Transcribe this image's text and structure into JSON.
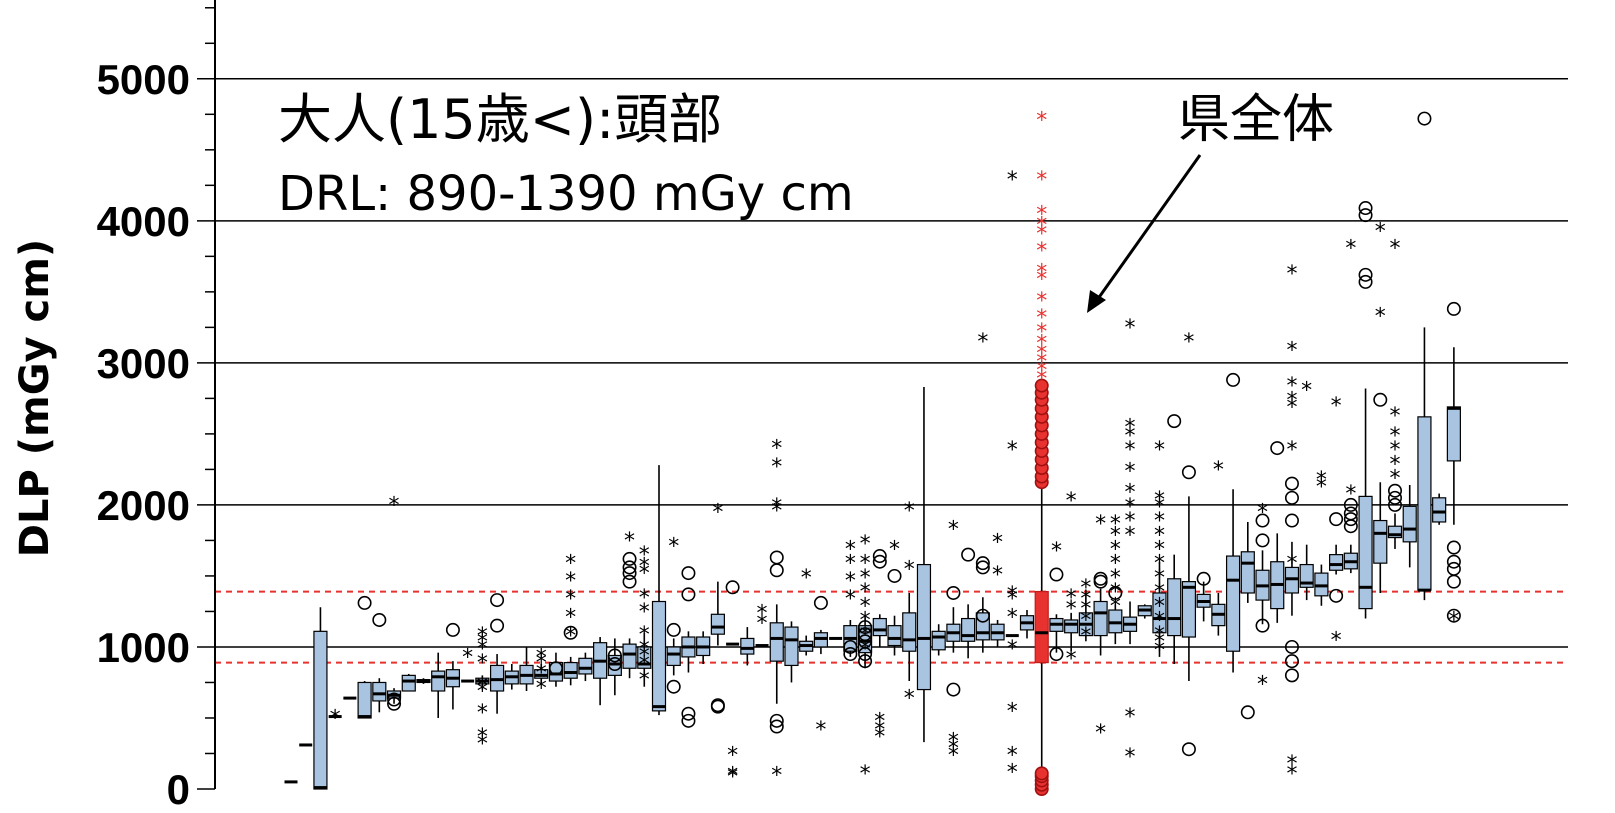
{
  "chart_data": {
    "type": "boxplot",
    "title": "大人(15歳<):頭部",
    "subtitle": "DRL: 890-1390 mGy cm",
    "ylabel": "DLP (mGy cm)",
    "xlabel": "",
    "ylim": [
      0,
      5500
    ],
    "yticks": [
      0,
      1000,
      2000,
      3000,
      4000,
      5000
    ],
    "ytick_labels": [
      "0",
      "1000",
      "2000",
      "3000",
      "4000",
      "5000"
    ],
    "grid": "horizontal major",
    "drl_lines": [
      890,
      1390
    ],
    "annotation": "県全体",
    "colors": {
      "box_fill": "#a9c4e0",
      "prefecture_fill": "#e8322f",
      "drl_line": "#e8322f",
      "grid": "#000000"
    },
    "boxes": [
      {
        "q1": 50,
        "median": 50,
        "q3": 50,
        "lo": 50,
        "hi": 50
      },
      {
        "q1": 310,
        "median": 310,
        "q3": 310,
        "lo": 310,
        "hi": 310
      },
      {
        "q1": 0,
        "median": 10,
        "q3": 1110,
        "lo": 0,
        "hi": 1280
      },
      {
        "q1": 510,
        "median": 510,
        "q3": 510,
        "lo": 510,
        "hi": 510,
        "stars": [
          510
        ]
      },
      {
        "q1": 640,
        "median": 640,
        "q3": 640,
        "lo": 640,
        "hi": 640
      },
      {
        "q1": 500,
        "median": 510,
        "q3": 750,
        "lo": 500,
        "hi": 760,
        "circles": [
          1310
        ]
      },
      {
        "q1": 620,
        "median": 670,
        "q3": 750,
        "lo": 540,
        "hi": 780,
        "circles": [
          1190
        ]
      },
      {
        "q1": 640,
        "median": 660,
        "q3": 690,
        "lo": 600,
        "hi": 710,
        "circles": [
          600,
          630
        ],
        "stars": [
          2010
        ]
      },
      {
        "q1": 690,
        "median": 760,
        "q3": 800,
        "lo": 690,
        "hi": 810
      },
      {
        "q1": 750,
        "median": 760,
        "q3": 770,
        "lo": 740,
        "hi": 780
      },
      {
        "q1": 690,
        "median": 790,
        "q3": 830,
        "lo": 500,
        "hi": 960
      },
      {
        "q1": 720,
        "median": 780,
        "q3": 840,
        "lo": 560,
        "hi": 900,
        "circles": [
          1120
        ]
      },
      {
        "q1": 760,
        "median": 760,
        "q3": 760,
        "lo": 760,
        "hi": 760,
        "stars": [
          940
        ]
      },
      {
        "q1": 740,
        "median": 760,
        "q3": 780,
        "lo": 700,
        "hi": 800,
        "stars": [
          330,
          380,
          550,
          700,
          740,
          900,
          1000,
          1050,
          1090
        ]
      },
      {
        "q1": 690,
        "median": 770,
        "q3": 870,
        "lo": 530,
        "hi": 950,
        "circles": [
          1150,
          1330
        ]
      },
      {
        "q1": 740,
        "median": 790,
        "q3": 830,
        "lo": 700,
        "hi": 880
      },
      {
        "q1": 740,
        "median": 800,
        "q3": 870,
        "lo": 690,
        "hi": 1000
      },
      {
        "q1": 780,
        "median": 800,
        "q3": 840,
        "lo": 740,
        "hi": 880,
        "stars": [
          720,
          830,
          900,
          940
        ]
      },
      {
        "q1": 760,
        "median": 810,
        "q3": 890,
        "lo": 720,
        "hi": 960,
        "circles": [
          850
        ]
      },
      {
        "q1": 780,
        "median": 820,
        "q3": 890,
        "lo": 730,
        "hi": 930,
        "stars": [
          1090,
          1220,
          1350,
          1480,
          1600
        ],
        "circles": [
          1100
        ]
      },
      {
        "q1": 810,
        "median": 850,
        "q3": 920,
        "lo": 760,
        "hi": 960
      },
      {
        "q1": 780,
        "median": 900,
        "q3": 1030,
        "lo": 590,
        "hi": 1070
      },
      {
        "q1": 800,
        "median": 880,
        "q3": 940,
        "lo": 660,
        "hi": 1060,
        "circles": [
          880,
          940
        ]
      },
      {
        "q1": 850,
        "median": 950,
        "q3": 1020,
        "lo": 780,
        "hi": 1060,
        "circles": [
          1460,
          1520,
          1560,
          1620
        ],
        "stars": [
          1760
        ]
      },
      {
        "q1": 850,
        "median": 880,
        "q3": 1000,
        "lo": 720,
        "hi": 1100,
        "stars": [
          780,
          890,
          950,
          1000,
          1100,
          1260,
          1360,
          1530,
          1580,
          1660
        ]
      },
      {
        "q1": 550,
        "median": 580,
        "q3": 1320,
        "lo": 520,
        "hi": 2280
      },
      {
        "q1": 870,
        "median": 950,
        "q3": 1000,
        "lo": 800,
        "hi": 1060,
        "circles": [
          720,
          1120
        ],
        "stars": [
          1720
        ]
      },
      {
        "q1": 930,
        "median": 1000,
        "q3": 1070,
        "lo": 820,
        "hi": 1110,
        "circles": [
          480,
          530,
          1370,
          1520
        ]
      },
      {
        "q1": 940,
        "median": 1000,
        "q3": 1070,
        "lo": 880,
        "hi": 1110
      },
      {
        "q1": 1090,
        "median": 1140,
        "q3": 1230,
        "lo": 1010,
        "hi": 1460,
        "stars": [
          1960
        ],
        "circles": [
          580,
          590
        ]
      },
      {
        "q1": 1020,
        "median": 1020,
        "q3": 1020,
        "lo": 1020,
        "hi": 1020,
        "stars": [
          100,
          110,
          250
        ],
        "circles": [
          1420
        ]
      },
      {
        "q1": 950,
        "median": 990,
        "q3": 1060,
        "lo": 870,
        "hi": 1140
      },
      {
        "q1": 1010,
        "median": 1010,
        "q3": 1010,
        "lo": 1010,
        "hi": 1010,
        "stars": [
          1180,
          1250
        ]
      },
      {
        "q1": 900,
        "median": 1060,
        "q3": 1170,
        "lo": 600,
        "hi": 1300,
        "circles": [
          440,
          480,
          1540,
          1630
        ],
        "stars": [
          110,
          1970,
          2000,
          2280,
          2410
        ]
      },
      {
        "q1": 870,
        "median": 1050,
        "q3": 1140,
        "lo": 750,
        "hi": 1180
      },
      {
        "q1": 970,
        "median": 1010,
        "q3": 1040,
        "lo": 940,
        "hi": 1080,
        "stars": [
          1500
        ]
      },
      {
        "q1": 1000,
        "median": 1060,
        "q3": 1100,
        "lo": 950,
        "hi": 1120,
        "circles": [
          1310
        ],
        "stars": [
          430
        ]
      },
      {
        "q1": 1060,
        "median": 1060,
        "q3": 1060,
        "lo": 1060,
        "hi": 1060
      },
      {
        "q1": 970,
        "median": 1060,
        "q3": 1150,
        "lo": 930,
        "hi": 1190,
        "circles": [
          950,
          1000
        ],
        "stars": [
          1350,
          1480,
          1600,
          1700
        ]
      },
      {
        "q1": 960,
        "median": 1040,
        "q3": 1150,
        "lo": 850,
        "hi": 1210,
        "circles": [
          900,
          950,
          1040,
          1090,
          1140
        ],
        "stars": [
          120,
          1000,
          1100,
          1200,
          1300,
          1400,
          1500,
          1600,
          1740
        ]
      },
      {
        "q1": 1080,
        "median": 1120,
        "q3": 1200,
        "lo": 1000,
        "hi": 1230,
        "circles": [
          1600,
          1640
        ],
        "stars": [
          380,
          430,
          490
        ]
      },
      {
        "q1": 1010,
        "median": 1060,
        "q3": 1150,
        "lo": 940,
        "hi": 1220,
        "circles": [
          1500
        ],
        "stars": [
          1700
        ]
      },
      {
        "q1": 970,
        "median": 1050,
        "q3": 1240,
        "lo": 760,
        "hi": 1380,
        "stars": [
          650,
          1560,
          1970
        ]
      },
      {
        "q1": 700,
        "median": 1060,
        "q3": 1580,
        "lo": 330,
        "hi": 2830
      },
      {
        "q1": 980,
        "median": 1070,
        "q3": 1110,
        "lo": 940,
        "hi": 1160
      },
      {
        "q1": 1040,
        "median": 1100,
        "q3": 1160,
        "lo": 960,
        "hi": 1280,
        "circles": [
          700,
          1380
        ],
        "stars": [
          250,
          300,
          350,
          1840
        ]
      },
      {
        "q1": 1040,
        "median": 1080,
        "q3": 1200,
        "lo": 920,
        "hi": 1300,
        "circles": [
          1650
        ]
      },
      {
        "q1": 1050,
        "median": 1100,
        "q3": 1240,
        "lo": 960,
        "hi": 1350,
        "circles": [
          1220,
          1560,
          1590
        ],
        "stars": [
          3160
        ]
      },
      {
        "q1": 1050,
        "median": 1100,
        "q3": 1160,
        "lo": 1000,
        "hi": 1190,
        "stars": [
          1520,
          1750
        ]
      },
      {
        "q1": 1080,
        "median": 1080,
        "q3": 1080,
        "lo": 1080,
        "hi": 1080,
        "stars": [
          130,
          250,
          560,
          1000,
          1220,
          1350,
          1380,
          2400,
          4300
        ]
      },
      {
        "q1": 1120,
        "median": 1170,
        "q3": 1220,
        "lo": 1060,
        "hi": 1260
      },
      {
        "q1": 890,
        "median": 1100,
        "q3": 1390,
        "lo": 0,
        "hi": 2140,
        "circles": [
          0,
          30,
          60,
          90,
          110,
          2160,
          2200,
          2260,
          2320,
          2380,
          2440,
          2500,
          2560,
          2620,
          2680,
          2740,
          2790,
          2840
        ],
        "stars": [
          2900,
          2960,
          3020,
          3080,
          3150,
          3230,
          3330,
          3450,
          3600,
          3650,
          3800,
          3920,
          3980,
          4060,
          4300,
          4720
        ],
        "highlight": true
      },
      {
        "q1": 1110,
        "median": 1160,
        "q3": 1200,
        "lo": 960,
        "hi": 1230,
        "circles": [
          950,
          1510
        ],
        "stars": [
          1690
        ]
      },
      {
        "q1": 1100,
        "median": 1160,
        "q3": 1190,
        "lo": 970,
        "hi": 1240,
        "stars": [
          930,
          1280,
          1360,
          2040
        ]
      },
      {
        "q1": 1080,
        "median": 1160,
        "q3": 1240,
        "lo": 1040,
        "hi": 1400,
        "stars": [
          1090,
          1200,
          1280,
          1350,
          1430
        ]
      },
      {
        "q1": 1080,
        "median": 1240,
        "q3": 1320,
        "lo": 940,
        "hi": 1410,
        "circles": [
          1460,
          1480
        ],
        "stars": [
          1880,
          410
        ]
      },
      {
        "q1": 1100,
        "median": 1170,
        "q3": 1260,
        "lo": 1020,
        "hi": 1300,
        "circles": [
          1380
        ],
        "stars": [
          1300,
          1400,
          1500,
          1600,
          1700,
          1800,
          1880
        ]
      },
      {
        "q1": 1110,
        "median": 1160,
        "q3": 1210,
        "lo": 1020,
        "hi": 1320,
        "stars": [
          240,
          520,
          1800,
          1900,
          2000,
          2100,
          2250,
          2400,
          2500,
          2560,
          3260
        ]
      },
      {
        "q1": 1220,
        "median": 1260,
        "q3": 1290,
        "lo": 1200,
        "hi": 1300
      },
      {
        "q1": 1100,
        "median": 1200,
        "q3": 1380,
        "lo": 930,
        "hi": 1600,
        "stars": [
          990,
          1050,
          1100,
          1200,
          1300,
          1400,
          1500,
          1600,
          1700,
          1800,
          1900,
          2000,
          2050,
          2400
        ]
      },
      {
        "q1": 1080,
        "median": 1200,
        "q3": 1480,
        "lo": 880,
        "hi": 1650,
        "circles": [
          2590
        ]
      },
      {
        "q1": 1070,
        "median": 1420,
        "q3": 1460,
        "lo": 760,
        "hi": 2060,
        "circles": [
          2230,
          280
        ],
        "stars": [
          3160
        ]
      },
      {
        "q1": 1280,
        "median": 1320,
        "q3": 1370,
        "lo": 1180,
        "hi": 1460,
        "circles": [
          1480
        ]
      },
      {
        "q1": 1150,
        "median": 1230,
        "q3": 1300,
        "lo": 1080,
        "hi": 1380,
        "stars": [
          2260
        ]
      },
      {
        "q1": 970,
        "median": 1470,
        "q3": 1640,
        "lo": 820,
        "hi": 2110,
        "circles": [
          2880
        ]
      },
      {
        "q1": 1380,
        "median": 1590,
        "q3": 1670,
        "lo": 1310,
        "hi": 1880,
        "circles": [
          540
        ]
      },
      {
        "q1": 1330,
        "median": 1430,
        "q3": 1540,
        "lo": 1160,
        "hi": 1680,
        "circles": [
          1150,
          1750,
          1890
        ],
        "stars": [
          750,
          1960
        ]
      },
      {
        "q1": 1270,
        "median": 1440,
        "q3": 1600,
        "lo": 1170,
        "hi": 1800,
        "circles": [
          2400
        ]
      },
      {
        "q1": 1380,
        "median": 1480,
        "q3": 1560,
        "lo": 1220,
        "hi": 1740,
        "circles": [
          800,
          900,
          1000,
          1890,
          2050,
          2150
        ],
        "stars": [
          120,
          190,
          1600,
          2400,
          2700,
          2750,
          2850,
          3100,
          3640
        ]
      },
      {
        "q1": 1420,
        "median": 1450,
        "q3": 1580,
        "lo": 1330,
        "hi": 1720,
        "stars": [
          2820
        ]
      },
      {
        "q1": 1360,
        "median": 1430,
        "q3": 1520,
        "lo": 1290,
        "hi": 1580,
        "stars": [
          2140,
          2190
        ]
      },
      {
        "q1": 1540,
        "median": 1580,
        "q3": 1650,
        "lo": 1510,
        "hi": 1720,
        "circles": [
          1360,
          1900
        ],
        "stars": [
          1060,
          2710
        ]
      },
      {
        "q1": 1550,
        "median": 1600,
        "q3": 1660,
        "lo": 1520,
        "hi": 1720,
        "circles": [
          1850,
          1900,
          1940,
          2000
        ],
        "stars": [
          2090,
          3820
        ]
      },
      {
        "q1": 1270,
        "median": 1420,
        "q3": 2060,
        "lo": 1200,
        "hi": 2820,
        "circles": [
          3570,
          3620,
          4040,
          4090
        ]
      },
      {
        "q1": 1590,
        "median": 1800,
        "q3": 1890,
        "lo": 1380,
        "hi": 2160,
        "circles": [
          2740
        ],
        "stars": [
          3340,
          3940
        ]
      },
      {
        "q1": 1770,
        "median": 1790,
        "q3": 1850,
        "lo": 1690,
        "hi": 1940,
        "circles": [
          2000,
          2050,
          2100
        ],
        "stars": [
          2200,
          2300,
          2400,
          2500,
          2640,
          3820
        ]
      },
      {
        "q1": 1740,
        "median": 1830,
        "q3": 1990,
        "lo": 1560,
        "hi": 2140
      },
      {
        "q1": 1400,
        "median": 1400,
        "q3": 2620,
        "lo": 1330,
        "hi": 3250,
        "circles": [
          4720
        ]
      },
      {
        "q1": 1880,
        "median": 1950,
        "q3": 2050,
        "lo": 1860,
        "hi": 2080
      },
      {
        "q1": 2310,
        "median": 2680,
        "q3": 2690,
        "lo": 1860,
        "hi": 3110,
        "circles": [
          1220,
          1460,
          1550,
          1600,
          1700,
          3380
        ],
        "stars": [
          1200
        ]
      }
    ]
  }
}
